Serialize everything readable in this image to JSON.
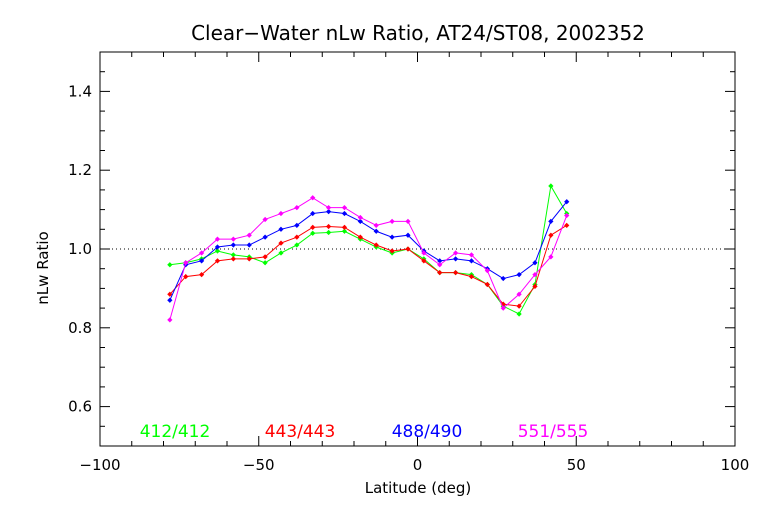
{
  "chart_data": {
    "type": "line",
    "title": "Clear−Water nLw Ratio, AT24/ST08, 2002352",
    "xlabel": "Latitude (deg)",
    "ylabel": "nLw Ratio",
    "xlim": [
      -100,
      100
    ],
    "ylim": [
      0.5,
      1.5
    ],
    "xticks": [
      -100,
      -50,
      0,
      50,
      100
    ],
    "xtick_labels": [
      "−100",
      "−50",
      "0",
      "50",
      "100"
    ],
    "yticks": [
      0.6,
      0.8,
      1.0,
      1.2,
      1.4
    ],
    "ytick_labels": [
      "0.6",
      "0.8",
      "1.0",
      "1.2",
      "1.4"
    ],
    "reference_line": 1.0,
    "grid": false,
    "legend_placement": "bottom inside plot",
    "x": [
      -78,
      -73,
      -68,
      -63,
      -58,
      -53,
      -48,
      -43,
      -38,
      -33,
      -28,
      -23,
      -18,
      -13,
      -8,
      -3,
      2,
      7,
      12,
      17,
      22,
      27,
      32,
      37,
      42,
      47
    ],
    "series": [
      {
        "name": "412/412",
        "color": "#00ff00",
        "values": [
          0.96,
          0.965,
          0.975,
          0.995,
          0.985,
          0.98,
          0.965,
          0.99,
          1.01,
          1.04,
          1.042,
          1.045,
          1.025,
          1.005,
          0.99,
          1.0,
          0.975,
          0.94,
          0.94,
          0.935,
          0.91,
          0.855,
          0.835,
          0.91,
          1.16,
          1.09
        ]
      },
      {
        "name": "443/443",
        "color": "#ff0000",
        "values": [
          0.885,
          0.93,
          0.935,
          0.97,
          0.975,
          0.975,
          0.98,
          1.015,
          1.03,
          1.055,
          1.057,
          1.055,
          1.03,
          1.01,
          0.995,
          1.0,
          0.97,
          0.94,
          0.94,
          0.93,
          0.91,
          0.86,
          0.855,
          0.905,
          1.035,
          1.06
        ]
      },
      {
        "name": "488/490",
        "color": "#0000ff",
        "values": [
          0.87,
          0.96,
          0.97,
          1.005,
          1.01,
          1.01,
          1.03,
          1.05,
          1.06,
          1.09,
          1.095,
          1.09,
          1.07,
          1.045,
          1.03,
          1.035,
          0.995,
          0.97,
          0.975,
          0.97,
          0.95,
          0.925,
          0.935,
          0.965,
          1.07,
          1.12
        ]
      },
      {
        "name": "551/555",
        "color": "#ff00ff",
        "values": [
          0.82,
          0.965,
          0.99,
          1.025,
          1.025,
          1.035,
          1.075,
          1.09,
          1.105,
          1.13,
          1.105,
          1.105,
          1.08,
          1.06,
          1.07,
          1.07,
          0.99,
          0.96,
          0.99,
          0.985,
          0.945,
          0.85,
          0.885,
          0.935,
          0.98,
          1.085
        ]
      }
    ]
  }
}
